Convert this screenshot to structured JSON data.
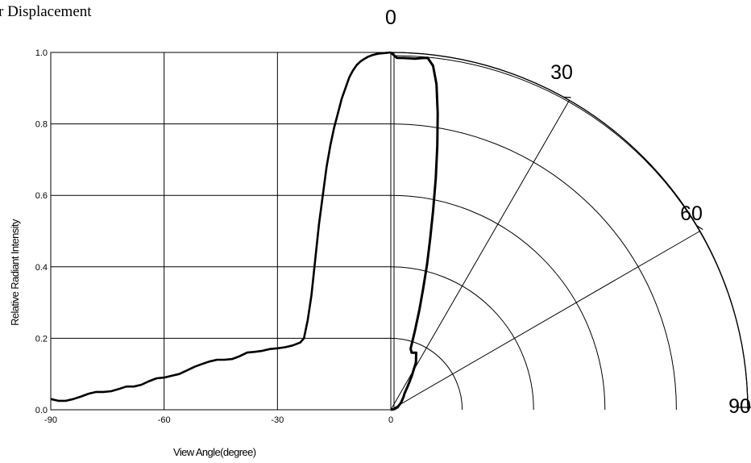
{
  "chart_data": {
    "type": "line",
    "title": "r Displacement",
    "xlabel": "View Angle(degree)",
    "ylabel": "Relative Radiant Intensity",
    "xlim": [
      -90,
      0
    ],
    "ylim": [
      0,
      1.0
    ],
    "x_ticks": [
      "-90",
      "-60",
      "-30",
      "0"
    ],
    "y_ticks": [
      "1.0",
      "0.8",
      "0.6",
      "0.4",
      "0.2",
      "0.0"
    ],
    "grid": true,
    "polar_angle_labels": [
      "0",
      "30",
      "60",
      "90"
    ],
    "series": [
      {
        "points": [
          [
            -90,
            0.03
          ],
          [
            -88,
            0.025
          ],
          [
            -86,
            0.025
          ],
          [
            -84,
            0.03
          ],
          [
            -82,
            0.037
          ],
          [
            -80,
            0.045
          ],
          [
            -78,
            0.05
          ],
          [
            -76,
            0.05
          ],
          [
            -74,
            0.052
          ],
          [
            -72,
            0.058
          ],
          [
            -70,
            0.065
          ],
          [
            -68,
            0.065
          ],
          [
            -66,
            0.07
          ],
          [
            -64,
            0.08
          ],
          [
            -62,
            0.088
          ],
          [
            -60,
            0.09
          ],
          [
            -58,
            0.095
          ],
          [
            -56,
            0.1
          ],
          [
            -54,
            0.11
          ],
          [
            -52,
            0.12
          ],
          [
            -50,
            0.128
          ],
          [
            -48,
            0.135
          ],
          [
            -46,
            0.14
          ],
          [
            -44,
            0.14
          ],
          [
            -42,
            0.142
          ],
          [
            -40,
            0.15
          ],
          [
            -38,
            0.16
          ],
          [
            -36,
            0.162
          ],
          [
            -34,
            0.165
          ],
          [
            -32,
            0.17
          ],
          [
            -30,
            0.172
          ],
          [
            -28,
            0.175
          ],
          [
            -26,
            0.18
          ],
          [
            -24,
            0.188
          ],
          [
            -23,
            0.2
          ],
          [
            -22,
            0.25
          ],
          [
            -21,
            0.32
          ],
          [
            -20,
            0.42
          ],
          [
            -19,
            0.52
          ],
          [
            -18,
            0.6
          ],
          [
            -17,
            0.68
          ],
          [
            -16,
            0.74
          ],
          [
            -15,
            0.79
          ],
          [
            -14,
            0.83
          ],
          [
            -13,
            0.87
          ],
          [
            -12,
            0.9
          ],
          [
            -11,
            0.93
          ],
          [
            -10,
            0.95
          ],
          [
            -9,
            0.965
          ],
          [
            -8,
            0.975
          ],
          [
            -7,
            0.982
          ],
          [
            -6,
            0.988
          ],
          [
            -5,
            0.992
          ],
          [
            -4,
            0.995
          ],
          [
            -3,
            0.997
          ],
          [
            -2,
            0.998
          ],
          [
            -1,
            0.999
          ],
          [
            0,
            1.0
          ]
        ]
      },
      {
        "points": [
          [
            0,
            1.0
          ],
          [
            1,
            0.985
          ],
          [
            2,
            0.985
          ],
          [
            3,
            0.985
          ],
          [
            4,
            0.985
          ],
          [
            5,
            0.988
          ],
          [
            6,
            0.99
          ],
          [
            7,
            0.97
          ],
          [
            8,
            0.92
          ],
          [
            9,
            0.84
          ],
          [
            10,
            0.75
          ],
          [
            11,
            0.66
          ],
          [
            12,
            0.57
          ],
          [
            13,
            0.49
          ],
          [
            14,
            0.42
          ],
          [
            15,
            0.35
          ],
          [
            16,
            0.29
          ],
          [
            17,
            0.23
          ],
          [
            18,
            0.18
          ],
          [
            20,
            0.17
          ],
          [
            24,
            0.175
          ],
          [
            28,
            0.15
          ],
          [
            32,
            0.11
          ],
          [
            36,
            0.08
          ],
          [
            40,
            0.06
          ],
          [
            45,
            0.05
          ],
          [
            55,
            0.035
          ],
          [
            70,
            0.02
          ],
          [
            80,
            0.01
          ],
          [
            90,
            0.0
          ]
        ]
      }
    ]
  }
}
